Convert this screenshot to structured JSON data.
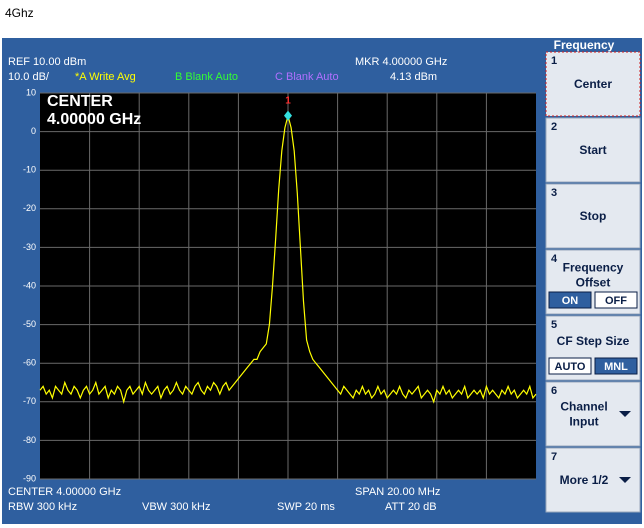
{
  "page_title": "4Ghz",
  "header": {
    "ref": "REF 10.00 dBm",
    "scale": "10.0 dB/",
    "trace_a": "*A Write Avg",
    "trace_b": "B Blank Auto",
    "trace_c": "C Blank Auto",
    "marker_freq": "MKR 4.00000 GHz",
    "marker_level": "4.13 dBm"
  },
  "footer": {
    "center": "CENTER 4.00000 GHz",
    "span": "SPAN 20.00 MHz",
    "rbw": "RBW 300 kHz",
    "vbw": "VBW 300 kHz",
    "swp": "SWP 20 ms",
    "att": "ATT 20 dB"
  },
  "chart_data": {
    "type": "line",
    "annotation": [
      "CENTER",
      "4.00000 GHz"
    ],
    "marker_label": "1",
    "ylim": [
      -90,
      10
    ],
    "yticks": [
      10,
      0,
      -10,
      -20,
      -30,
      -40,
      -50,
      -60,
      -70,
      -80,
      -90
    ],
    "grid": true,
    "color": "#ffff00",
    "values": [
      -67,
      -66,
      -68,
      -67,
      -69,
      -66,
      -67,
      -68,
      -65,
      -67,
      -68,
      -66,
      -67,
      -69,
      -67,
      -66,
      -68,
      -67,
      -65,
      -68,
      -67,
      -66,
      -69,
      -67,
      -68,
      -66,
      -67,
      -70,
      -67,
      -66,
      -68,
      -67,
      -66,
      -68,
      -65,
      -67,
      -68,
      -67,
      -66,
      -69,
      -67,
      -66,
      -68,
      -67,
      -65,
      -67,
      -68,
      -66,
      -67,
      -68,
      -66,
      -65,
      -67,
      -68,
      -66,
      -67,
      -65,
      -66,
      -68,
      -66,
      -65,
      -67,
      -66,
      -65,
      -64,
      -63,
      -62,
      -61,
      -60,
      -59,
      -59,
      -57,
      -56,
      -55,
      -50,
      -40,
      -28,
      -15,
      -5,
      1,
      4.13,
      1,
      -5,
      -16,
      -30,
      -44,
      -54,
      -57,
      -59,
      -60,
      -61,
      -62,
      -63,
      -64,
      -65,
      -66,
      -67,
      -68,
      -66,
      -67,
      -68,
      -69,
      -67,
      -68,
      -66,
      -68,
      -67,
      -69,
      -68,
      -66,
      -68,
      -67,
      -69,
      -68,
      -67,
      -68,
      -66,
      -68,
      -69,
      -67,
      -68,
      -67,
      -66,
      -69,
      -68,
      -67,
      -68,
      -70,
      -67,
      -68,
      -66,
      -68,
      -67,
      -69,
      -68,
      -67,
      -68,
      -66,
      -69,
      -68,
      -67,
      -68,
      -67,
      -69,
      -66,
      -68,
      -67,
      -68,
      -69,
      -67,
      -68,
      -66,
      -68,
      -67,
      -69,
      -68,
      -67,
      -68,
      -66,
      -69,
      -68
    ]
  },
  "softkeys": {
    "title": "Frequency",
    "keys": [
      {
        "number": "1",
        "label": [
          "Center"
        ]
      },
      {
        "number": "2",
        "label": [
          "Start"
        ]
      },
      {
        "number": "3",
        "label": [
          "Stop"
        ]
      },
      {
        "number": "4",
        "label": [
          "Frequency",
          "Offset"
        ],
        "options": [
          "ON",
          "OFF"
        ]
      },
      {
        "number": "5",
        "label": [
          "CF Step Size"
        ],
        "options": [
          "AUTO",
          "MNL"
        ]
      },
      {
        "number": "6",
        "label": [
          "Channel",
          "Input"
        ]
      },
      {
        "number": "7",
        "label": [
          "More 1/2"
        ]
      }
    ]
  }
}
